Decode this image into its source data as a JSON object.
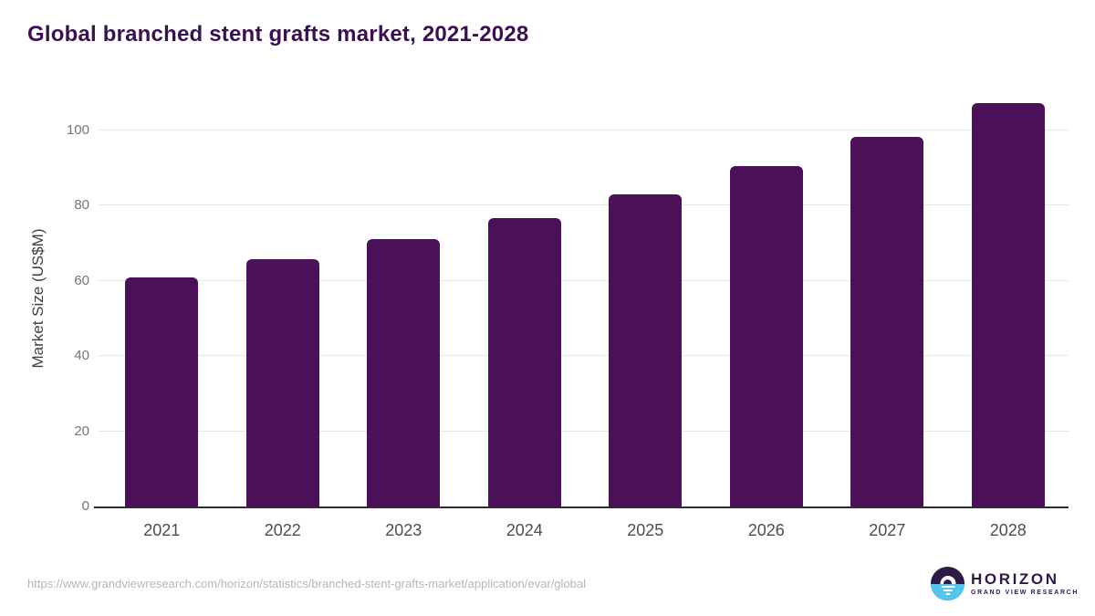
{
  "title": "Global branched stent grafts market, 2021-2028",
  "footer": {
    "source_url": "https://www.grandviewresearch.com/horizon/statistics/branched-stent-grafts-market/application/evar/global",
    "logo": {
      "wordmark": "HORIZON",
      "subtitle": "GRAND VIEW RESEARCH"
    }
  },
  "colors": {
    "bar": "#4a1158",
    "title_text": "#3b1053",
    "logo_purple": "#2e1a47",
    "logo_blue": "#57c4ec",
    "gridline": "#e9e9e9",
    "axis_line": "#2d2d2d",
    "ytick_text": "#757575",
    "xtick_text": "#4d4d4d",
    "url_text": "#b6b6b6",
    "background": "#ffffff"
  },
  "chart_data": {
    "type": "bar",
    "title": "Global branched stent grafts market, 2021-2028",
    "categories": [
      "2021",
      "2022",
      "2023",
      "2024",
      "2025",
      "2026",
      "2027",
      "2028"
    ],
    "values": [
      60.8,
      65.8,
      71.2,
      76.6,
      83.1,
      90.4,
      98.2,
      107.3
    ],
    "xlabel": "",
    "ylabel": "Market Size (US$M)",
    "ylim": [
      0,
      110.4
    ],
    "yticks": [
      0,
      20,
      40,
      60,
      80,
      100
    ],
    "grid": true,
    "legend": false,
    "bar_color": "#4a1158"
  }
}
